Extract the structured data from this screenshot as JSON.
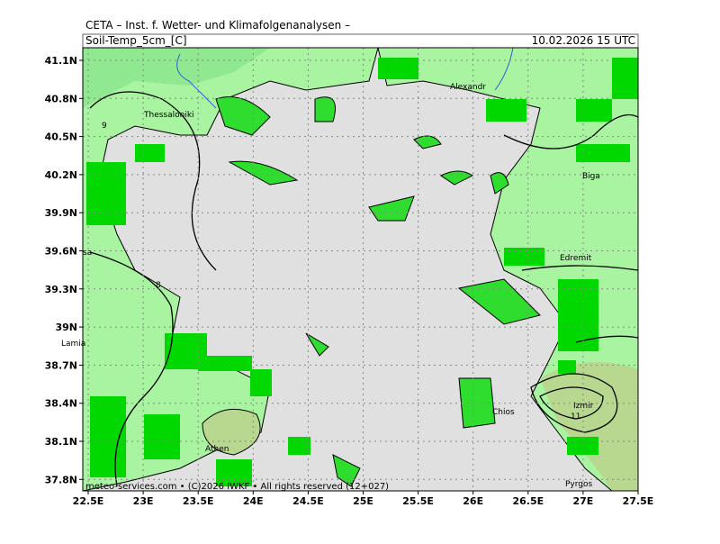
{
  "header": {
    "title": "CETA – Inst. f. Wetter- und Klimafolgenanalysen –",
    "parameter": "Soil-Temp_5cm_[C]",
    "valid_time": "10.02.2026 15 UTC"
  },
  "map": {
    "lat_labels": [
      "41.1N",
      "40.8N",
      "40.5N",
      "40.2N",
      "39.9N",
      "39.6N",
      "39.3N",
      "39N",
      "38.7N",
      "38.4N",
      "38.1N",
      "37.8N"
    ],
    "lon_labels": [
      "22.5E",
      "23E",
      "23.5E",
      "24E",
      "24.5E",
      "25E",
      "25.5E",
      "26E",
      "26.5E",
      "27E",
      "27.5E"
    ],
    "places": [
      "Thessaloniki",
      "Alexandr",
      "Biga",
      "Edremit",
      "Lamia",
      "Chios",
      "Izmir",
      "Athen",
      "sa",
      "Pyrgos"
    ],
    "contour_labels": [
      "9",
      "8",
      "11"
    ]
  },
  "footer": "meteo-services.com • (C)2026 IWKF • All rights reserved (12+027)"
}
